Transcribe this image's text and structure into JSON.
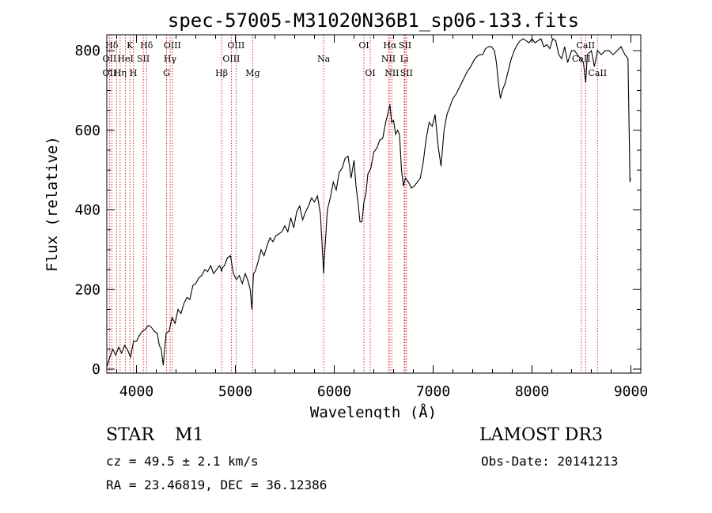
{
  "chart_data": {
    "type": "line",
    "title": "spec-57005-M31020N36B1_sp06-133.fits",
    "xlabel": "Wavelength (Å)",
    "ylabel": "Flux (relative)",
    "xlim": [
      3700,
      9100
    ],
    "ylim": [
      -10,
      840
    ],
    "x_ticks": [
      4000,
      5000,
      6000,
      7000,
      8000,
      9000
    ],
    "y_ticks": [
      0,
      200,
      400,
      600,
      800
    ],
    "series": [
      {
        "name": "flux",
        "x": [
          3700,
          3730,
          3760,
          3790,
          3820,
          3850,
          3880,
          3910,
          3940,
          3970,
          4000,
          4030,
          4060,
          4090,
          4120,
          4150,
          4180,
          4210,
          4230,
          4250,
          4270,
          4300,
          4330,
          4360,
          4390,
          4420,
          4450,
          4480,
          4510,
          4540,
          4570,
          4600,
          4630,
          4660,
          4690,
          4720,
          4750,
          4780,
          4810,
          4840,
          4850,
          4861,
          4870,
          4890,
          4920,
          4950,
          4980,
          5010,
          5040,
          5070,
          5100,
          5130,
          5150,
          5167,
          5172,
          5183,
          5200,
          5230,
          5260,
          5290,
          5320,
          5350,
          5380,
          5410,
          5440,
          5470,
          5500,
          5530,
          5560,
          5590,
          5620,
          5650,
          5680,
          5710,
          5740,
          5770,
          5800,
          5830,
          5860,
          5880,
          5893,
          5900,
          5910,
          5930,
          5960,
          5990,
          6020,
          6050,
          6080,
          6110,
          6140,
          6170,
          6200,
          6220,
          6240,
          6260,
          6280,
          6300,
          6320,
          6340,
          6370,
          6400,
          6430,
          6460,
          6490,
          6520,
          6550,
          6563,
          6580,
          6600,
          6620,
          6640,
          6660,
          6680,
          6700,
          6720,
          6750,
          6780,
          6810,
          6840,
          6870,
          6900,
          6930,
          6960,
          6990,
          7020,
          7050,
          7080,
          7110,
          7140,
          7170,
          7200,
          7230,
          7260,
          7290,
          7320,
          7350,
          7380,
          7410,
          7440,
          7470,
          7500,
          7530,
          7560,
          7590,
          7620,
          7640,
          7660,
          7680,
          7700,
          7730,
          7760,
          7790,
          7820,
          7850,
          7880,
          7910,
          7940,
          7970,
          8000,
          8030,
          8060,
          8090,
          8120,
          8150,
          8180,
          8210,
          8240,
          8270,
          8300,
          8330,
          8360,
          8400,
          8430,
          8460,
          8490,
          8520,
          8542,
          8560,
          8600,
          8630,
          8662,
          8700,
          8740,
          8780,
          8820,
          8860,
          8900,
          8940,
          8970,
          8985,
          8990,
          8995
        ],
        "values": [
          5,
          30,
          50,
          35,
          55,
          40,
          60,
          48,
          30,
          70,
          70,
          85,
          95,
          100,
          110,
          105,
          95,
          90,
          60,
          50,
          10,
          90,
          95,
          130,
          115,
          150,
          140,
          165,
          180,
          175,
          210,
          215,
          230,
          235,
          250,
          245,
          260,
          240,
          250,
          260,
          255,
          245,
          255,
          260,
          280,
          285,
          240,
          225,
          235,
          215,
          240,
          220,
          200,
          150,
          180,
          240,
          245,
          270,
          300,
          285,
          310,
          330,
          320,
          335,
          340,
          345,
          360,
          345,
          380,
          355,
          395,
          410,
          375,
          395,
          410,
          430,
          420,
          435,
          390,
          300,
          240,
          280,
          320,
          400,
          430,
          470,
          450,
          495,
          505,
          530,
          535,
          480,
          525,
          460,
          420,
          370,
          370,
          420,
          440,
          490,
          505,
          545,
          555,
          575,
          580,
          620,
          650,
          665,
          620,
          625,
          590,
          600,
          590,
          500,
          460,
          480,
          470,
          455,
          460,
          470,
          480,
          520,
          580,
          620,
          610,
          640,
          560,
          510,
          600,
          640,
          660,
          680,
          690,
          705,
          720,
          735,
          750,
          760,
          775,
          785,
          790,
          790,
          805,
          810,
          810,
          800,
          770,
          720,
          680,
          700,
          720,
          750,
          780,
          800,
          815,
          825,
          830,
          825,
          820,
          830,
          820,
          825,
          830,
          810,
          815,
          805,
          830,
          825,
          790,
          780,
          810,
          770,
          800,
          800,
          790,
          780,
          770,
          720,
          790,
          800,
          760,
          800,
          790,
          800,
          800,
          790,
          800,
          810,
          790,
          780,
          560,
          470,
          480
        ]
      }
    ],
    "lines_top": [
      {
        "label": "Hδ",
        "x": 3750
      },
      {
        "label": "K",
        "x": 3934
      },
      {
        "label": "Hδ",
        "x": 4102
      },
      {
        "label": "OIII",
        "x": 4363
      },
      {
        "label": "OIII",
        "x": 5007
      },
      {
        "label": "OI",
        "x": 6300
      },
      {
        "label": "Hα",
        "x": 6563
      },
      {
        "label": "SII",
        "x": 6716
      },
      {
        "label": "CaII",
        "x": 8542
      }
    ],
    "lines_mid": [
      {
        "label": "OII",
        "x": 3727
      },
      {
        "label": "HeI",
        "x": 3889
      },
      {
        "label": "SII",
        "x": 4069
      },
      {
        "label": "Hγ",
        "x": 4340
      },
      {
        "label": "OIII",
        "x": 4959
      },
      {
        "label": "Na",
        "x": 5893
      },
      {
        "label": "NII",
        "x": 6548
      },
      {
        "label": "Li",
        "x": 6708
      },
      {
        "label": "CaII",
        "x": 8498
      }
    ],
    "lines_low": [
      {
        "label": "OII",
        "x": 3727
      },
      {
        "label": "Hη",
        "x": 3835
      },
      {
        "label": "H",
        "x": 3968
      },
      {
        "label": "G",
        "x": 4304
      },
      {
        "label": "Hβ",
        "x": 4861
      },
      {
        "label": "Mg",
        "x": 5175
      },
      {
        "label": "OI",
        "x": 6364
      },
      {
        "label": "NII",
        "x": 6583
      },
      {
        "label": "SII",
        "x": 6731
      },
      {
        "label": "CaII",
        "x": 8662
      }
    ],
    "dotted_lines": [
      3727,
      3750,
      3798,
      3835,
      3889,
      3934,
      3968,
      4069,
      4102,
      4304,
      4340,
      4363,
      4861,
      4959,
      5007,
      5175,
      5893,
      6300,
      6364,
      6548,
      6563,
      6583,
      6708,
      6716,
      6731,
      8498,
      8542,
      8662
    ]
  },
  "info": {
    "object_class": "STAR",
    "subclass": "M1",
    "survey": "LAMOST DR3",
    "cz": "cz = 49.5 ± 2.1 km/s",
    "obs_date": "Obs-Date: 20141213",
    "radec": "RA =  23.46819, DEC =  36.12386"
  },
  "colors": {
    "spectrum": "#000000",
    "line_markers": "#cc0000",
    "axes": "#000000",
    "background": "#ffffff"
  }
}
